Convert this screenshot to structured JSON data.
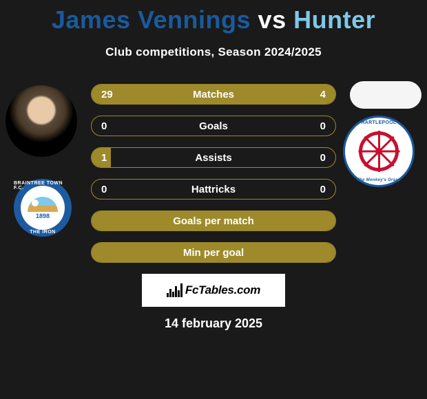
{
  "title": {
    "player1": "James Vennings",
    "vs": "vs",
    "player2": "Hunter",
    "player1_color": "#1a5a9e",
    "vs_color": "#ffffff",
    "player2_color": "#7ec8e8"
  },
  "subtitle": "Club competitions, Season 2024/2025",
  "club_left": {
    "year": "1898",
    "top_text": "BRAINTREE TOWN F.C.",
    "bottom_text": "THE IRON",
    "outer_color": "#1e5aa0",
    "inner_color": "#ffffff"
  },
  "club_right": {
    "top_text": "HARTLEPOOL",
    "right_text": "UNITED F.C.",
    "bottom_text": "The Monkey's Grasp",
    "wheel_color": "#c8102e",
    "ring_color": "#1a5a9e",
    "bg_color": "#ffffff"
  },
  "stats": {
    "bar_color": "#9e8a2a",
    "rows": [
      {
        "label": "Matches",
        "left": "29",
        "right": "4",
        "left_pct": 76,
        "right_pct": 24
      },
      {
        "label": "Goals",
        "left": "0",
        "right": "0",
        "left_pct": 0,
        "right_pct": 0
      },
      {
        "label": "Assists",
        "left": "1",
        "right": "0",
        "left_pct": 8,
        "right_pct": 0
      },
      {
        "label": "Hattricks",
        "left": "0",
        "right": "0",
        "left_pct": 0,
        "right_pct": 0
      },
      {
        "label": "Goals per match",
        "left": "",
        "right": "",
        "left_pct": 100,
        "right_pct": 0,
        "full": true
      },
      {
        "label": "Min per goal",
        "left": "",
        "right": "",
        "left_pct": 100,
        "right_pct": 0,
        "full": true
      }
    ]
  },
  "logo_text": "FcTables.com",
  "date": "14 february 2025",
  "colors": {
    "background": "#1a1a1a",
    "text": "#ffffff"
  }
}
